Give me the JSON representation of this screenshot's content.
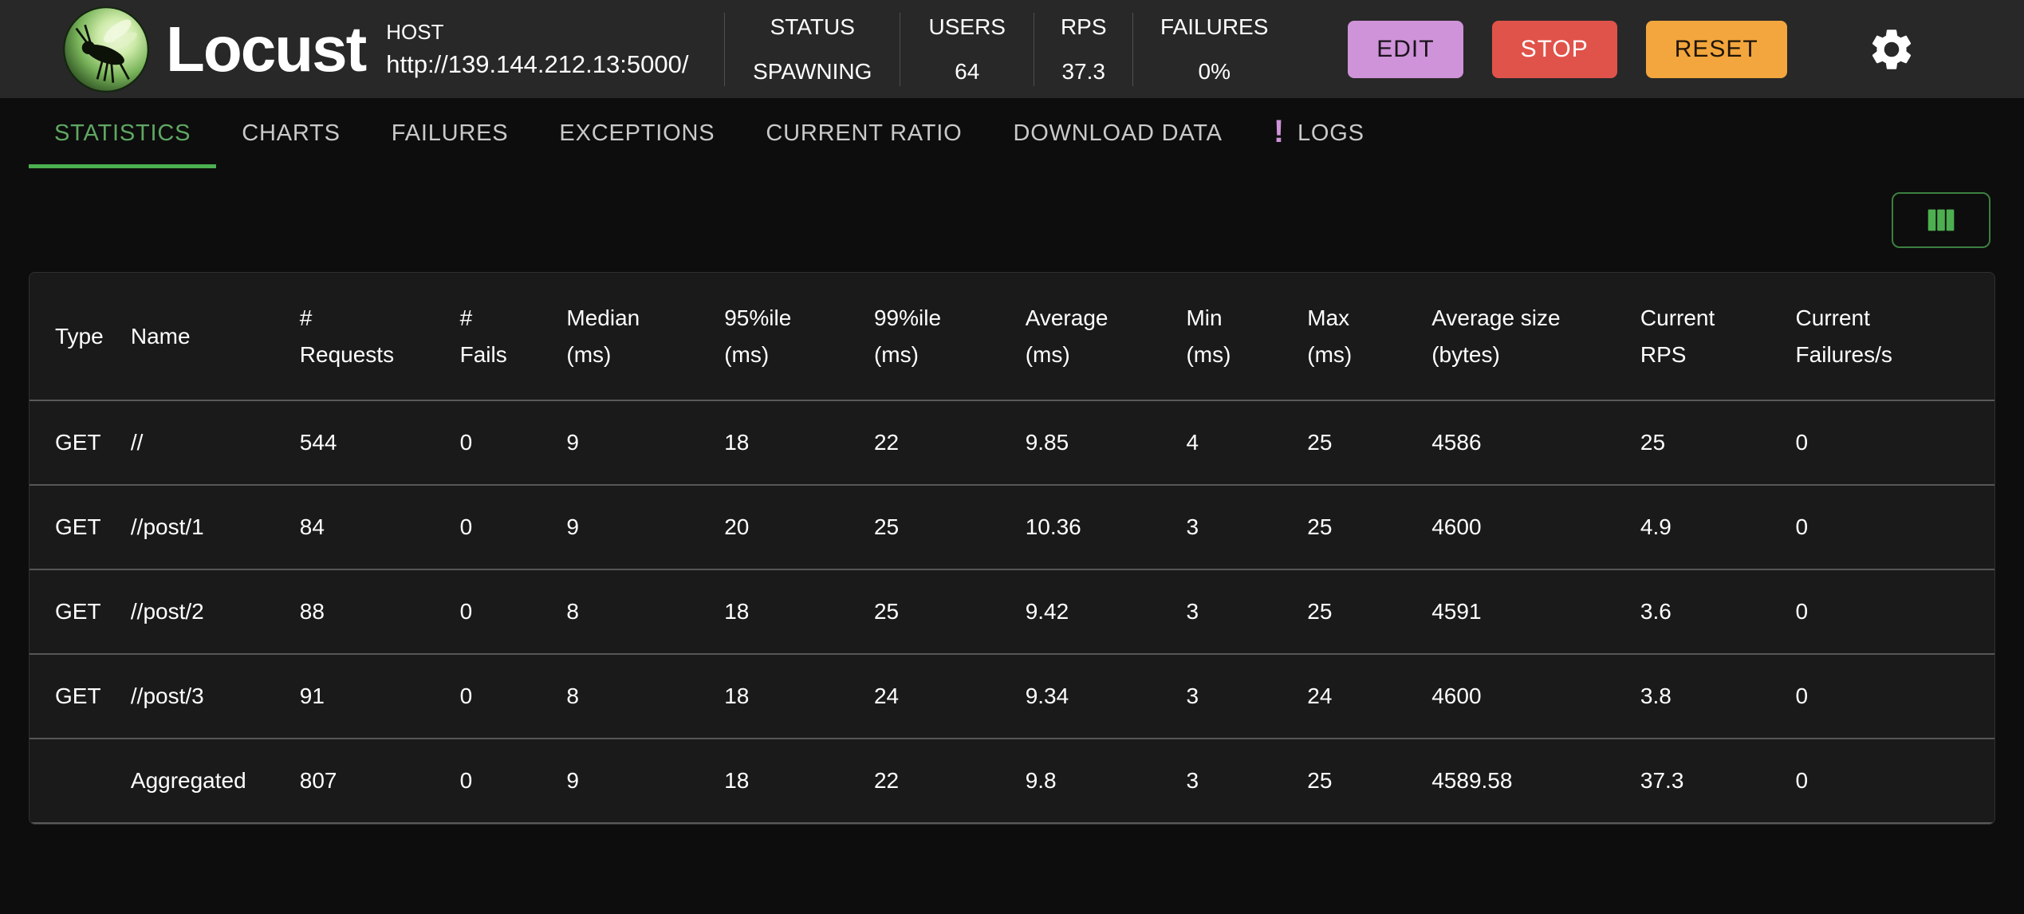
{
  "header": {
    "app_title": "Locust",
    "host_label": "HOST",
    "host_url": "http://139.144.212.13:5000/",
    "stats": [
      {
        "label": "STATUS",
        "value": "SPAWNING"
      },
      {
        "label": "USERS",
        "value": "64"
      },
      {
        "label": "RPS",
        "value": "37.3"
      },
      {
        "label": "FAILURES",
        "value": "0%"
      }
    ],
    "buttons": [
      {
        "label": "EDIT",
        "color": "#ce93d8"
      },
      {
        "label": "STOP",
        "color": "#e0534a"
      },
      {
        "label": "RESET",
        "color": "#f2a63d"
      }
    ]
  },
  "tabs": [
    {
      "label": "STATISTICS",
      "active": true
    },
    {
      "label": "CHARTS"
    },
    {
      "label": "FAILURES"
    },
    {
      "label": "EXCEPTIONS"
    },
    {
      "label": "CURRENT RATIO"
    },
    {
      "label": "DOWNLOAD DATA"
    },
    {
      "label": "LOGS",
      "badge": "!"
    }
  ],
  "colors": {
    "accent_green": "#4caf50",
    "active_tab_green": "#5fa763",
    "badge_purple": "#ce93d8",
    "header_bg": "#282828",
    "page_bg": "#0d0d0d",
    "table_bg": "#1a1a1a"
  },
  "table": {
    "columns": [
      {
        "line1": "Type",
        "line2": ""
      },
      {
        "line1": "Name",
        "line2": ""
      },
      {
        "line1": "#",
        "line2": "Requests"
      },
      {
        "line1": "#",
        "line2": "Fails"
      },
      {
        "line1": "Median",
        "line2": "(ms)"
      },
      {
        "line1": "95%ile",
        "line2": "(ms)"
      },
      {
        "line1": "99%ile",
        "line2": "(ms)"
      },
      {
        "line1": "Average",
        "line2": "(ms)"
      },
      {
        "line1": "Min",
        "line2": "(ms)"
      },
      {
        "line1": "Max",
        "line2": "(ms)"
      },
      {
        "line1": "Average size",
        "line2": "(bytes)"
      },
      {
        "line1": "Current",
        "line2": "RPS"
      },
      {
        "line1": "Current",
        "line2": "Failures/s"
      }
    ],
    "rows": [
      [
        "GET",
        "//",
        "544",
        "0",
        "9",
        "18",
        "22",
        "9.85",
        "4",
        "25",
        "4586",
        "25",
        "0"
      ],
      [
        "GET",
        "//post/1",
        "84",
        "0",
        "9",
        "20",
        "25",
        "10.36",
        "3",
        "25",
        "4600",
        "4.9",
        "0"
      ],
      [
        "GET",
        "//post/2",
        "88",
        "0",
        "8",
        "18",
        "25",
        "9.42",
        "3",
        "25",
        "4591",
        "3.6",
        "0"
      ],
      [
        "GET",
        "//post/3",
        "91",
        "0",
        "8",
        "18",
        "24",
        "9.34",
        "3",
        "24",
        "4600",
        "3.8",
        "0"
      ],
      [
        "",
        "Aggregated",
        "807",
        "0",
        "9",
        "18",
        "22",
        "9.8",
        "3",
        "25",
        "4589.58",
        "37.3",
        "0"
      ]
    ]
  }
}
